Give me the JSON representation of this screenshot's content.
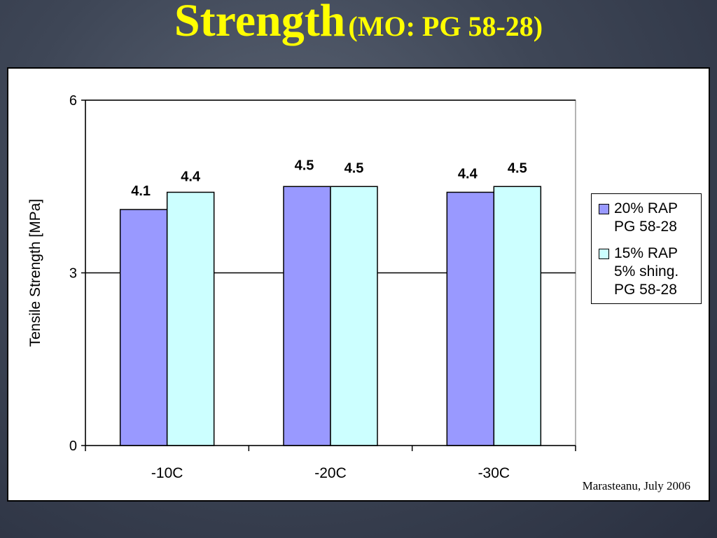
{
  "slide": {
    "title_main": "Strength",
    "title_sub": "(MO: PG 58-28)",
    "credit": "Marasteanu, July 2006"
  },
  "colors": {
    "title": "#ffff00",
    "series_1": "#9999ff",
    "series_2": "#ccffff"
  },
  "chart_data": {
    "type": "bar",
    "categories": [
      "-10C",
      "-20C",
      "-30C"
    ],
    "series": [
      {
        "name": [
          "20% RAP",
          "PG 58-28"
        ],
        "values": [
          4.1,
          4.5,
          4.4
        ],
        "color": "#9999ff"
      },
      {
        "name": [
          "15% RAP",
          "5% shing.",
          "PG 58-28"
        ],
        "values": [
          4.4,
          4.5,
          4.5
        ],
        "color": "#ccffff"
      }
    ],
    "ylabel": "Tensile Strength [MPa]",
    "ylim": [
      0,
      6
    ],
    "yticks": [
      0,
      3,
      6
    ],
    "grid": true,
    "legend_position": "right"
  }
}
